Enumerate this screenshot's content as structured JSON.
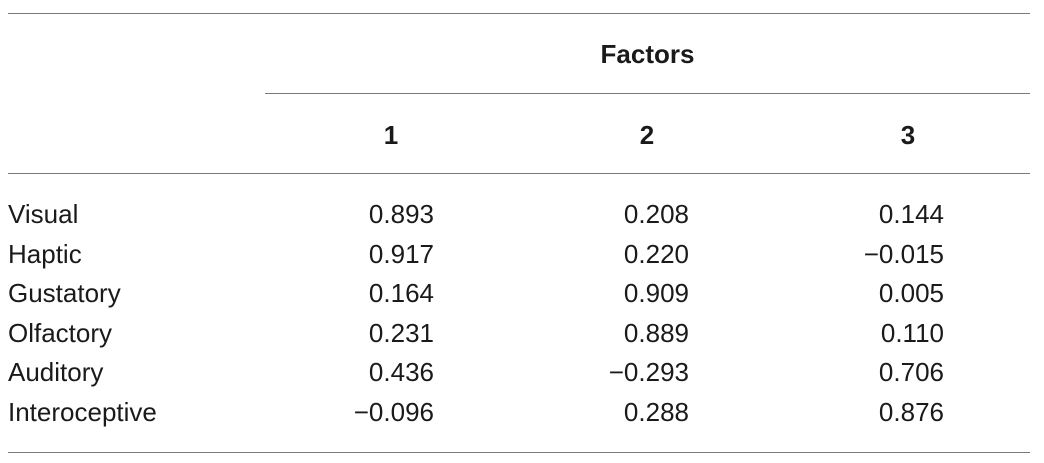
{
  "table": {
    "spanning_header": "Factors",
    "columns": [
      "1",
      "2",
      "3"
    ],
    "rows": [
      {
        "label": "Visual",
        "values": [
          "0.893",
          "0.208",
          "0.144"
        ]
      },
      {
        "label": "Haptic",
        "values": [
          "0.917",
          "0.220",
          "−0.015"
        ]
      },
      {
        "label": "Gustatory",
        "values": [
          "0.164",
          "0.909",
          "0.005"
        ]
      },
      {
        "label": "Olfactory",
        "values": [
          "0.231",
          "0.889",
          "0.110"
        ]
      },
      {
        "label": "Auditory",
        "values": [
          "0.436",
          "−0.293",
          "0.706"
        ]
      },
      {
        "label": "Interoceptive",
        "values": [
          "−0.096",
          "0.288",
          "0.876"
        ]
      }
    ]
  }
}
